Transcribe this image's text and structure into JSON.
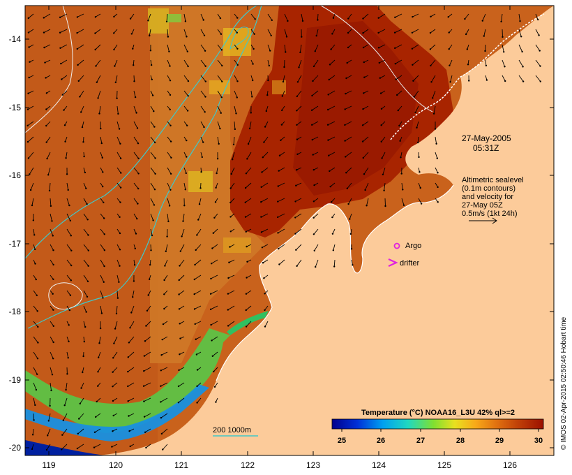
{
  "map": {
    "datetime_line1": "27-May-2005",
    "datetime_line2": "05:31Z",
    "altimetry_lines": [
      "Altimetric sealevel",
      "(0.1m contours)",
      "and velocity for",
      "27-May 05Z",
      "0.5m/s (1kt 24h)"
    ],
    "legend_argo": "Argo",
    "legend_drifter": "drifter",
    "depth_legend": "200  1000m",
    "credit": "© IMOS 02-Apr-2015 02:50:46 Hobart time",
    "x_ticks": [
      "119",
      "120",
      "121",
      "122",
      "123",
      "124",
      "125",
      "126"
    ],
    "y_ticks": [
      "-14",
      "-15",
      "-16",
      "-17",
      "-18",
      "-19",
      "-20"
    ],
    "colorbar": {
      "title": "Temperature (°C) NOAA16_L3U 42% ql>=2",
      "ticks": [
        "25",
        "26",
        "27",
        "28",
        "29",
        "30"
      ]
    },
    "colors": {
      "land": "#fccb9a",
      "warm_sea": "#b83c10",
      "deep_red": "#a01a00",
      "cyan_contour": "#40c8c8",
      "argo_marker": "#e020e0"
    }
  }
}
